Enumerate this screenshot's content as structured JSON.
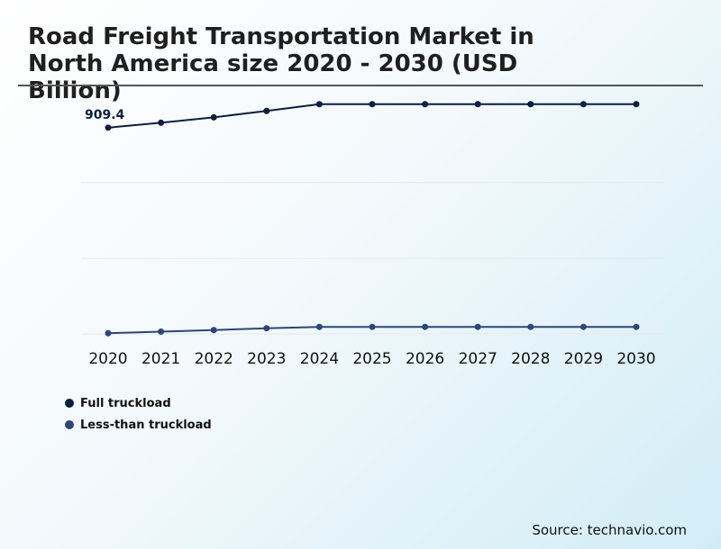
{
  "title": "Road Freight Transportation Market in North America size 2020 - 2030 (USD Billion)",
  "source": "Source: technavio.com",
  "chart_data": {
    "type": "line",
    "title": "Road Freight Transportation Market in North America size 2020 - 2030 (USD Billion)",
    "xlabel": "",
    "ylabel": "",
    "categories": [
      "2020",
      "2021",
      "2022",
      "2023",
      "2024",
      "2025",
      "2026",
      "2027",
      "2028",
      "2029",
      "2030"
    ],
    "ylim": [
      0,
      1000
    ],
    "grid": true,
    "legend_position": "bottom-left",
    "annotations": [
      {
        "series": 0,
        "index": 0,
        "text": "909.4"
      }
    ],
    "series": [
      {
        "name": "Full truckload",
        "color": "#0b1f3f",
        "values": [
          909.4,
          931,
          955,
          983,
          1013,
          1013,
          1013,
          1013,
          1013,
          1013,
          1013
        ]
      },
      {
        "name": "Less-than truckload",
        "color": "#2e4677",
        "values": [
          3,
          10,
          17,
          25,
          31,
          31,
          31,
          31,
          31,
          31,
          31
        ]
      }
    ]
  }
}
